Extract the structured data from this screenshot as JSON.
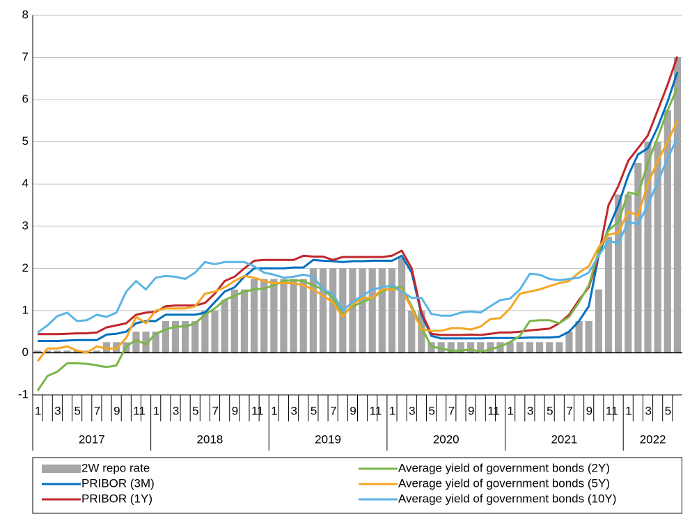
{
  "chart_data": {
    "type": "combo",
    "categories": [
      "1",
      null,
      "3",
      null,
      "5",
      null,
      "7",
      null,
      "9",
      null,
      "11",
      null,
      "1",
      null,
      "3",
      null,
      "5",
      null,
      "7",
      null,
      "9",
      null,
      "11",
      null,
      "1",
      null,
      "3",
      null,
      "5",
      null,
      "7",
      null,
      "9",
      null,
      "11",
      null,
      "1",
      null,
      "3",
      null,
      "5",
      null,
      "7",
      null,
      "9",
      null,
      "11",
      null,
      "1",
      null,
      "3",
      null,
      "5",
      null,
      "7",
      null,
      "9",
      null,
      "11",
      null,
      "1",
      null,
      "3",
      null,
      "5",
      null
    ],
    "years": [
      "2017",
      "2018",
      "2019",
      "2020",
      "2021",
      "2022"
    ],
    "ylim": [
      -1,
      8
    ],
    "yticks": [
      -1,
      0,
      1,
      2,
      3,
      4,
      5,
      6,
      7,
      8
    ],
    "grid": true,
    "series": [
      {
        "name": "2W repo rate",
        "type": "bar",
        "color": "#a6a6a6",
        "values": [
          0.05,
          0.05,
          0.05,
          0.05,
          0.05,
          0.05,
          0.05,
          0.25,
          0.25,
          0.25,
          0.5,
          0.5,
          0.5,
          0.75,
          0.75,
          0.75,
          0.75,
          1.0,
          1.0,
          1.25,
          1.5,
          1.5,
          1.75,
          1.75,
          1.75,
          1.75,
          1.75,
          1.75,
          2.0,
          2.0,
          2.0,
          2.0,
          2.0,
          2.0,
          2.0,
          2.0,
          2.0,
          2.25,
          1.0,
          1.0,
          0.25,
          0.25,
          0.25,
          0.25,
          0.25,
          0.25,
          0.25,
          0.25,
          0.25,
          0.25,
          0.25,
          0.25,
          0.25,
          0.25,
          0.5,
          0.75,
          0.75,
          1.5,
          2.75,
          3.75,
          3.75,
          4.5,
          5.0,
          5.0,
          5.75,
          7.0
        ]
      },
      {
        "name": "PRIBOR (3M)",
        "type": "line",
        "color": "#0070c0",
        "values": [
          0.28,
          0.28,
          0.28,
          0.29,
          0.3,
          0.3,
          0.3,
          0.43,
          0.45,
          0.5,
          0.7,
          0.75,
          0.75,
          0.9,
          0.9,
          0.9,
          0.9,
          0.95,
          1.2,
          1.45,
          1.55,
          1.8,
          2.0,
          2.0,
          2.0,
          2.0,
          2.02,
          2.02,
          2.2,
          2.18,
          2.17,
          2.15,
          2.17,
          2.17,
          2.18,
          2.18,
          2.18,
          2.3,
          1.9,
          0.9,
          0.4,
          0.34,
          0.34,
          0.34,
          0.34,
          0.34,
          0.35,
          0.35,
          0.35,
          0.35,
          0.36,
          0.36,
          0.36,
          0.38,
          0.5,
          0.75,
          1.1,
          2.3,
          2.95,
          3.5,
          4.2,
          4.7,
          4.85,
          5.35,
          5.95,
          6.65
        ]
      },
      {
        "name": "PRIBOR (1Y)",
        "type": "line",
        "color": "#c0272d",
        "values": [
          0.44,
          0.44,
          0.44,
          0.45,
          0.46,
          0.46,
          0.48,
          0.6,
          0.65,
          0.7,
          0.9,
          0.95,
          0.97,
          1.1,
          1.12,
          1.12,
          1.12,
          1.18,
          1.4,
          1.7,
          1.8,
          2.0,
          2.18,
          2.2,
          2.2,
          2.2,
          2.2,
          2.3,
          2.28,
          2.28,
          2.2,
          2.27,
          2.27,
          2.27,
          2.27,
          2.27,
          2.3,
          2.42,
          2.0,
          0.95,
          0.45,
          0.42,
          0.42,
          0.42,
          0.43,
          0.42,
          0.45,
          0.48,
          0.48,
          0.5,
          0.53,
          0.55,
          0.57,
          0.7,
          0.9,
          1.25,
          1.55,
          2.3,
          3.5,
          3.95,
          4.55,
          4.85,
          5.15,
          5.75,
          6.35,
          7.02
        ]
      },
      {
        "name": "Average yield of government bonds (2Y)",
        "type": "line",
        "color": "#7ab648",
        "values": [
          -0.9,
          -0.55,
          -0.45,
          -0.25,
          -0.25,
          -0.26,
          -0.3,
          -0.34,
          -0.3,
          0.15,
          0.3,
          0.2,
          0.45,
          0.55,
          0.62,
          0.62,
          0.7,
          0.9,
          1.05,
          1.25,
          1.35,
          1.45,
          1.5,
          1.52,
          1.6,
          1.7,
          1.72,
          1.7,
          1.6,
          1.5,
          1.3,
          0.9,
          1.1,
          1.2,
          1.3,
          1.45,
          1.55,
          1.55,
          1.1,
          0.6,
          0.15,
          0.1,
          0.05,
          0.05,
          0.08,
          0.02,
          0.08,
          0.15,
          0.25,
          0.4,
          0.75,
          0.77,
          0.77,
          0.7,
          0.85,
          1.2,
          1.6,
          2.4,
          2.9,
          3.1,
          3.8,
          3.75,
          4.5,
          5.1,
          5.75,
          6.28
        ]
      },
      {
        "name": "Average yield of government bonds (5Y)",
        "type": "line",
        "color": "#f5a623",
        "values": [
          -0.2,
          0.1,
          0.1,
          0.15,
          0.05,
          0.0,
          0.15,
          0.1,
          0.1,
          0.35,
          0.85,
          0.7,
          1.0,
          1.05,
          1.05,
          1.05,
          1.1,
          1.4,
          1.45,
          1.55,
          1.7,
          1.82,
          1.78,
          1.7,
          1.65,
          1.65,
          1.65,
          1.6,
          1.5,
          1.35,
          1.2,
          0.85,
          1.15,
          1.3,
          1.3,
          1.5,
          1.5,
          1.5,
          1.05,
          0.55,
          0.52,
          0.52,
          0.58,
          0.58,
          0.55,
          0.62,
          0.8,
          0.82,
          1.05,
          1.4,
          1.45,
          1.5,
          1.58,
          1.65,
          1.7,
          1.9,
          2.05,
          2.5,
          2.8,
          2.85,
          3.35,
          3.25,
          4.0,
          4.55,
          5.0,
          5.5
        ]
      },
      {
        "name": "Average yield of government bonds (10Y)",
        "type": "line",
        "color": "#5bb4e5",
        "values": [
          0.48,
          0.65,
          0.87,
          0.95,
          0.75,
          0.77,
          0.9,
          0.85,
          0.95,
          1.45,
          1.7,
          1.5,
          1.78,
          1.82,
          1.8,
          1.75,
          1.9,
          2.15,
          2.1,
          2.15,
          2.15,
          2.15,
          2.05,
          1.9,
          1.85,
          1.78,
          1.8,
          1.85,
          1.8,
          1.5,
          1.4,
          1.0,
          1.2,
          1.35,
          1.5,
          1.55,
          1.6,
          1.45,
          1.3,
          1.3,
          0.92,
          0.88,
          0.88,
          0.95,
          0.98,
          0.95,
          1.1,
          1.25,
          1.28,
          1.5,
          1.87,
          1.85,
          1.75,
          1.72,
          1.75,
          1.78,
          1.9,
          2.3,
          2.65,
          2.6,
          3.1,
          3.05,
          3.5,
          4.05,
          4.6,
          5.1
        ]
      }
    ]
  }
}
